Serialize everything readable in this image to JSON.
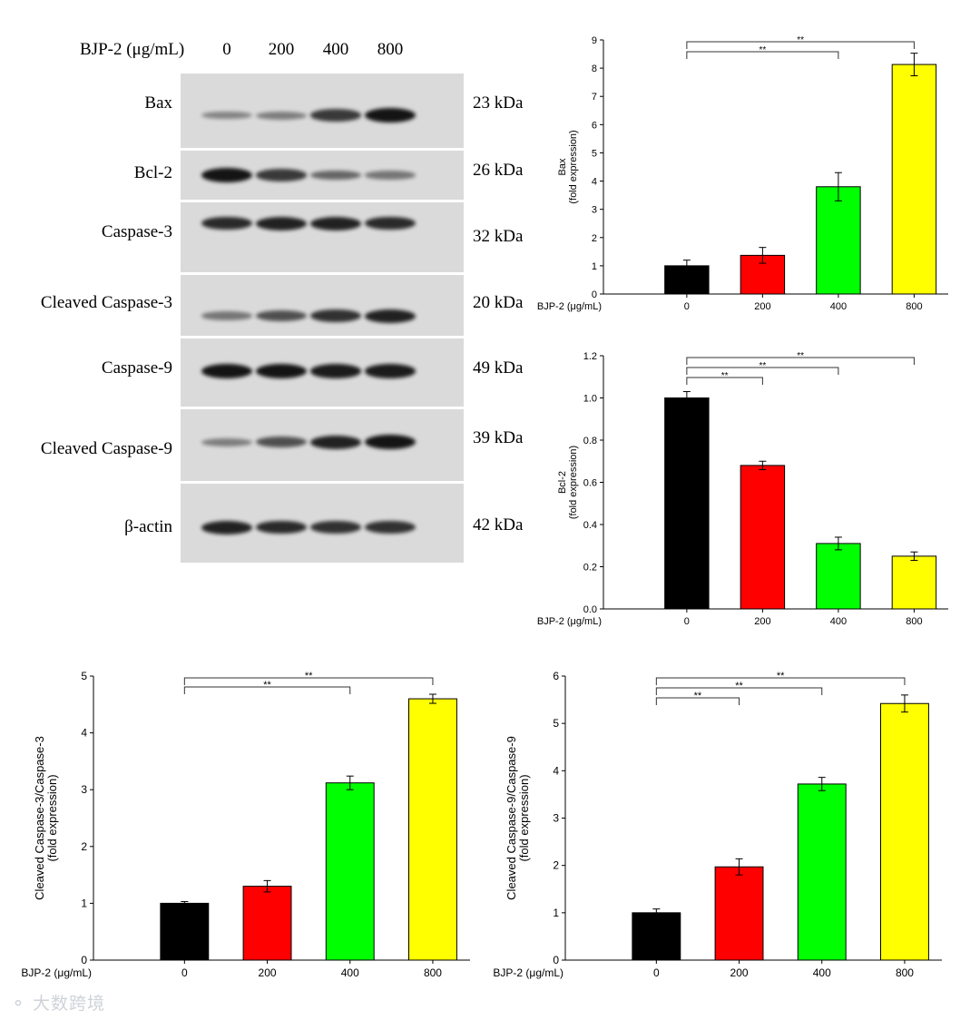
{
  "western_blot": {
    "treatment_label": "BJP-2 (μg/mL)",
    "lanes": [
      "0",
      "200",
      "400",
      "800"
    ],
    "bands": [
      {
        "name": "Bax",
        "kda": "23 kDa",
        "intensity": [
          0.25,
          0.3,
          0.75,
          1.0
        ]
      },
      {
        "name": "Bcl-2",
        "kda": "26 kDa",
        "intensity": [
          1.0,
          0.75,
          0.45,
          0.35
        ]
      },
      {
        "name": "Caspase-3",
        "kda": "32 kDa",
        "intensity": [
          0.85,
          0.9,
          0.9,
          0.85
        ]
      },
      {
        "name": "Cleaved Caspase-3",
        "kda": "20 kDa",
        "intensity": [
          0.35,
          0.6,
          0.8,
          0.9
        ]
      },
      {
        "name": "Caspase-9",
        "kda": "49 kDa",
        "intensity": [
          1.0,
          1.0,
          0.95,
          0.95
        ]
      },
      {
        "name": "Cleaved Caspase-9",
        "kda": "39 kDa",
        "intensity": [
          0.3,
          0.6,
          0.9,
          1.0
        ]
      },
      {
        "name": "β-actin",
        "kda": "42 kDa",
        "intensity": [
          0.9,
          0.85,
          0.8,
          0.8
        ]
      }
    ]
  },
  "chart_data": [
    {
      "type": "bar",
      "ylabel": "Bax",
      "ylabel2": "(fold  expression)",
      "xlabel": "BJP-2 (μg/mL)",
      "categories": [
        "0",
        "200",
        "400",
        "800"
      ],
      "values": [
        1.0,
        1.37,
        3.8,
        8.13
      ],
      "errors": [
        0.2,
        0.28,
        0.5,
        0.4
      ],
      "ylim": [
        0,
        9
      ],
      "yticks": [
        "0",
        "1",
        "2",
        "3",
        "4",
        "5",
        "6",
        "7",
        "8",
        "9"
      ],
      "significance": [
        {
          "from": 0,
          "to": 2,
          "label": "**"
        },
        {
          "from": 0,
          "to": 3,
          "label": "**"
        }
      ]
    },
    {
      "type": "bar",
      "ylabel": "Bcl-2",
      "ylabel2": "(fold  expression)",
      "xlabel": "BJP-2 (μg/mL)",
      "categories": [
        "0",
        "200",
        "400",
        "800"
      ],
      "values": [
        1.0,
        0.68,
        0.31,
        0.25
      ],
      "errors": [
        0.03,
        0.02,
        0.03,
        0.02
      ],
      "ylim": [
        0,
        1.2
      ],
      "yticks": [
        "0.0",
        "0.2",
        "0.4",
        "0.6",
        "0.8",
        "1.0",
        "1.2"
      ],
      "significance": [
        {
          "from": 0,
          "to": 1,
          "label": "**"
        },
        {
          "from": 0,
          "to": 2,
          "label": "**"
        },
        {
          "from": 0,
          "to": 3,
          "label": "**"
        }
      ]
    },
    {
      "type": "bar",
      "ylabel": "Cleaved Caspase-3/Caspase-3",
      "ylabel2": "(fold  expression)",
      "xlabel": "BJP-2 (μg/mL)",
      "categories": [
        "0",
        "200",
        "400",
        "800"
      ],
      "values": [
        1.0,
        1.3,
        3.12,
        4.6
      ],
      "errors": [
        0.03,
        0.1,
        0.12,
        0.08
      ],
      "ylim": [
        0,
        5
      ],
      "yticks": [
        "0",
        "1",
        "2",
        "3",
        "4",
        "5"
      ],
      "significance": [
        {
          "from": 0,
          "to": 2,
          "label": "**"
        },
        {
          "from": 0,
          "to": 3,
          "label": "**"
        }
      ]
    },
    {
      "type": "bar",
      "ylabel": "Cleaved Caspase-9/Caspase-9",
      "ylabel2": "(fold  expression)",
      "xlabel": "BJP-2 (μg/mL)",
      "categories": [
        "0",
        "200",
        "400",
        "800"
      ],
      "values": [
        1.0,
        1.97,
        3.72,
        5.42
      ],
      "errors": [
        0.08,
        0.17,
        0.14,
        0.18
      ],
      "ylim": [
        0,
        6
      ],
      "yticks": [
        "0",
        "1",
        "2",
        "3",
        "4",
        "5",
        "6"
      ],
      "significance": [
        {
          "from": 0,
          "to": 1,
          "label": "**"
        },
        {
          "from": 0,
          "to": 2,
          "label": "**"
        },
        {
          "from": 0,
          "to": 3,
          "label": "**"
        }
      ]
    }
  ],
  "bar_colors": [
    "#000000",
    "#ff0000",
    "#00ff00",
    "#ffff00"
  ],
  "watermark": "大数跨境"
}
